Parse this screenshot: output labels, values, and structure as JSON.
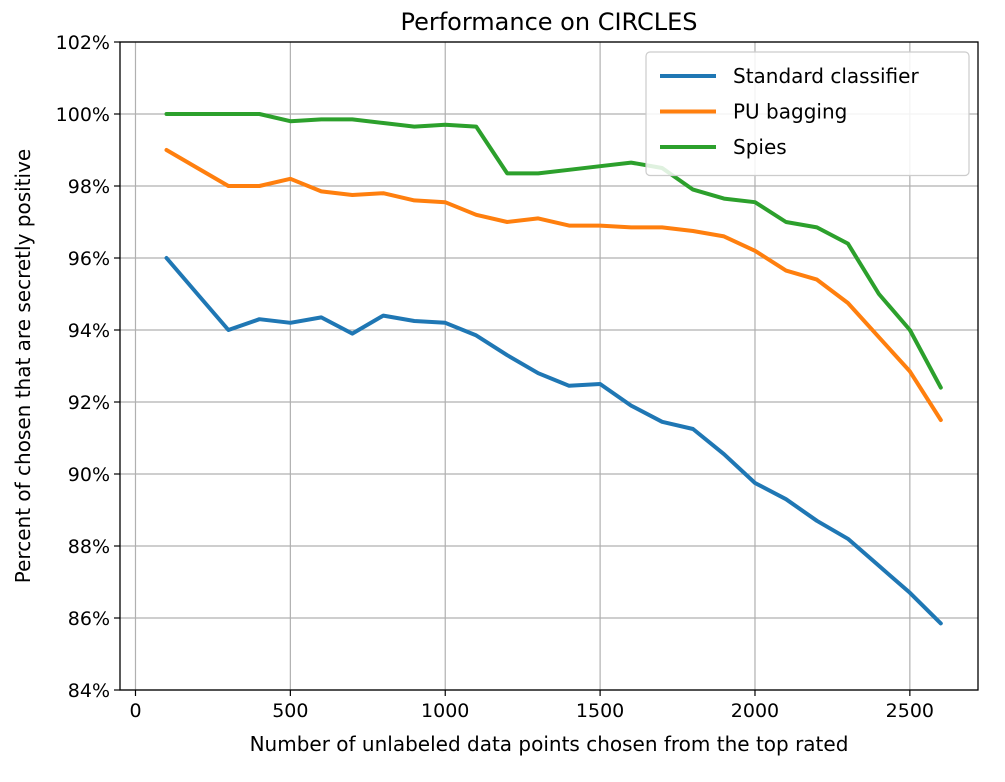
{
  "chart_data": {
    "type": "line",
    "title": "Performance on CIRCLES",
    "xlabel": "Number of unlabeled data points chosen from the top rated",
    "ylabel": "Percent of chosen that are secretly positive",
    "xlim": [
      -50,
      2720
    ],
    "ylim": [
      84,
      102
    ],
    "xticks": [
      0,
      500,
      1000,
      1500,
      2000,
      2500
    ],
    "yticks": [
      84,
      86,
      88,
      90,
      92,
      94,
      96,
      98,
      100,
      102
    ],
    "ytick_labels": [
      "84%",
      "86%",
      "88%",
      "90%",
      "92%",
      "94%",
      "96%",
      "98%",
      "100%",
      "102%"
    ],
    "grid": true,
    "legend_position": "top-right",
    "x": [
      100,
      200,
      300,
      400,
      500,
      600,
      700,
      800,
      900,
      1000,
      1100,
      1200,
      1300,
      1400,
      1500,
      1600,
      1700,
      1800,
      1900,
      2000,
      2100,
      2200,
      2300,
      2400,
      2500,
      2600
    ],
    "series": [
      {
        "name": "Standard classifier",
        "color": "#1f77b4",
        "values": [
          96.0,
          95.0,
          94.0,
          94.3,
          94.2,
          94.35,
          93.9,
          94.4,
          94.25,
          94.2,
          93.85,
          93.3,
          92.8,
          92.45,
          92.5,
          91.9,
          91.45,
          91.25,
          90.55,
          89.75,
          89.3,
          88.7,
          88.2,
          87.45,
          86.7,
          85.85
        ]
      },
      {
        "name": "PU bagging",
        "color": "#ff7f0e",
        "values": [
          99.0,
          98.5,
          98.0,
          98.0,
          98.2,
          97.85,
          97.75,
          97.8,
          97.6,
          97.55,
          97.2,
          97.0,
          97.1,
          96.9,
          96.9,
          96.85,
          96.85,
          96.75,
          96.6,
          96.2,
          95.65,
          95.4,
          94.75,
          93.8,
          92.85,
          91.5
        ]
      },
      {
        "name": "Spies",
        "color": "#2ca02c",
        "values": [
          100.0,
          100.0,
          100.0,
          100.0,
          99.8,
          99.85,
          99.85,
          99.75,
          99.65,
          99.7,
          99.65,
          98.35,
          98.35,
          98.45,
          98.55,
          98.65,
          98.5,
          97.9,
          97.65,
          97.55,
          97.0,
          96.85,
          96.4,
          95.0,
          94.0,
          92.4
        ]
      }
    ]
  }
}
